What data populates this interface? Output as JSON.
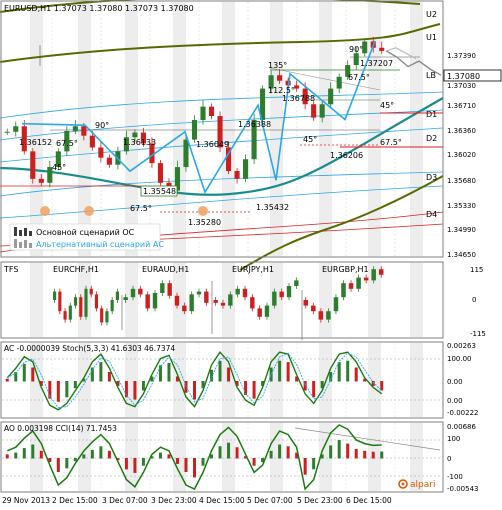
{
  "colors": {
    "background": "#ffffff",
    "frame": "#7f7f7f",
    "grid": "#d9d9d9",
    "stripe": "#e7e7e7",
    "bull": "#2e7d2e",
    "bear": "#cc1f1f",
    "navy": "#0b2a7a",
    "blue_line": "#2aa7e8",
    "teal": "#1a8c8c",
    "olive": "#556b00",
    "red_line": "#dc1e1e",
    "osc_line": "#1a7a10",
    "label_bg": "#ffffff",
    "brand": "#d55a00"
  },
  "main_panel": {
    "header": "EURUSD,H1  1.37073 1.37080 1.37073 1.37080",
    "price_axis": {
      "ticks": [
        "1.37390",
        "1.37030",
        "1.36710",
        "1.36360",
        "1.36020",
        "1.35680",
        "1.35330",
        "1.34990",
        "1.34650"
      ]
    },
    "right_labels": [
      "U2",
      "U1",
      "LB",
      "D1",
      "D2",
      "D3",
      "D4"
    ],
    "last_price": "1.37080",
    "price_labels": [
      "1.36152",
      "1.36133",
      "1.36049",
      "1.36388",
      "1.36788",
      "1.37207",
      "1.36206",
      "1.35548",
      "1.35432",
      "1.35280"
    ],
    "angle_labels": [
      "90°",
      "67.5°",
      "45°",
      "67.5°",
      "135°",
      "90°",
      "67.5°",
      "112.5°",
      "45°",
      "45°",
      "67.5°"
    ],
    "legend": {
      "main_scenario": "Основной сценарий ОС",
      "alt_scenario": "Альтернативный сценарий АС"
    }
  },
  "cross_panel": {
    "header": "TFS",
    "labels": [
      "EURCHF,H1",
      "EURAUD,H1",
      "EURJPY,H1",
      "EURGBP,H1"
    ],
    "axis": [
      "115",
      "0",
      "-115"
    ]
  },
  "ac_panel": {
    "header": "AC -0.0000039  Stoch(5,3,3) 41.6303 46.7374",
    "axis": [
      "0.00263",
      "100.00",
      "0.00",
      "0.00",
      "-0.00222"
    ]
  },
  "ao_panel": {
    "header": "AO 0.003198  CCI(14) 71.7453",
    "axis": [
      "0.00686",
      "100",
      "0",
      "-100",
      "-0.00543"
    ]
  },
  "time_axis": {
    "labels": [
      "29 Nov 2013",
      "2 Dec 15:00",
      "3 Dec 07:00",
      "3 Dec 23:00",
      "4 Dec 15:00",
      "5 Dec 07:00",
      "5 Dec 23:00",
      "6 Dec 15:00"
    ]
  },
  "brand": {
    "name": "alpari"
  },
  "chart_data": {
    "type": "candlestick",
    "symbol": "EURUSD",
    "timeframe": "H1",
    "y_range": [
      1.3448,
      1.3755
    ],
    "key_prices": {
      "last": 1.3708,
      "high": 1.37207,
      "low": 1.3528
    },
    "zigzag_swings": [
      {
        "label": "1.36152",
        "value": 1.36152
      },
      {
        "label": "1.36133",
        "value": 1.36133
      },
      {
        "label": "1.35548",
        "value": 1.35548
      },
      {
        "label": "1.36049",
        "value": 1.36049
      },
      {
        "label": "1.35280",
        "value": 1.3528
      },
      {
        "label": "1.36388",
        "value": 1.36388
      },
      {
        "label": "1.35432",
        "value": 1.35432
      },
      {
        "label": "1.36788",
        "value": 1.36788
      },
      {
        "label": "1.36206",
        "value": 1.36206
      },
      {
        "label": "1.37207",
        "value": 1.37207
      }
    ],
    "close_path": [
      1.3605,
      1.3612,
      1.358,
      1.3545,
      1.354,
      1.356,
      1.358,
      1.3606,
      1.3612,
      1.36,
      1.3585,
      1.3572,
      1.3563,
      1.358,
      1.3598,
      1.3604,
      1.359,
      1.3565,
      1.354,
      1.353,
      1.356,
      1.3595,
      1.362,
      1.3637,
      1.3625,
      1.3585,
      1.3555,
      1.3545,
      1.357,
      1.362,
      1.366,
      1.3677,
      1.367,
      1.3664,
      1.366,
      1.364,
      1.3623,
      1.364,
      1.366,
      1.3675,
      1.369,
      1.3705,
      1.372,
      1.3712,
      1.3708
    ],
    "forecast": [
      1.3708,
      1.37,
      1.3688,
      1.3695,
      1.3685,
      1.3677
    ],
    "forecast_alt": [
      1.3708,
      1.3712,
      1.3705,
      1.3698
    ]
  },
  "oscillators": {
    "cross_series": [
      [
        30,
        -40,
        -70,
        -20,
        10,
        -60,
        40,
        20,
        -30,
        -80,
        -40,
        0,
        30
      ],
      [
        10,
        40,
        20,
        -30,
        25,
        60,
        15,
        -20,
        -40,
        20,
        30,
        -10
      ],
      [
        -10,
        -20,
        20,
        40,
        10,
        -30,
        -60,
        -20,
        30,
        10,
        50,
        70
      ],
      [
        -20,
        -40,
        -70,
        -40,
        10,
        60,
        40,
        80,
        70,
        110,
        90
      ]
    ],
    "stoch": [
      55,
      70,
      88,
      80,
      40,
      12,
      5,
      15,
      35,
      55,
      80,
      92,
      70,
      40,
      15,
      10,
      30,
      60,
      85,
      90,
      60,
      25,
      10,
      35,
      75,
      95,
      80,
      40,
      20,
      12,
      40,
      80,
      95,
      92,
      60,
      30,
      15,
      35,
      70,
      92,
      95,
      80,
      55,
      40,
      30
    ],
    "cci": [
      40,
      60,
      110,
      150,
      80,
      -40,
      -150,
      -110,
      -30,
      40,
      90,
      130,
      80,
      -20,
      -120,
      -160,
      -80,
      20,
      60,
      40,
      -60,
      -150,
      -210,
      -80,
      40,
      130,
      170,
      120,
      20,
      -80,
      -40,
      80,
      150,
      130,
      60,
      -180,
      -120,
      40,
      140,
      200,
      160,
      100,
      80,
      70,
      72
    ]
  }
}
